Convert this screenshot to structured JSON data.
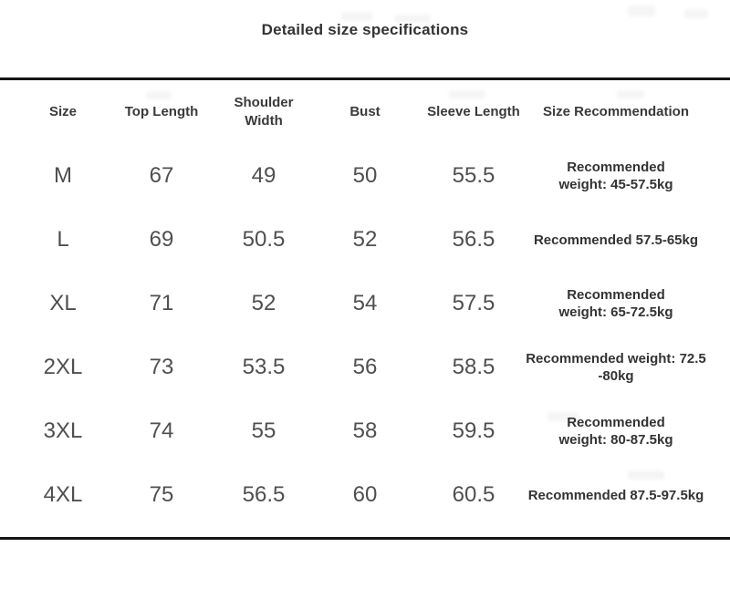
{
  "page": {
    "title": "Detailed size specifications"
  },
  "colors": {
    "background": "#ffffff",
    "rule": "#151515",
    "title_text": "#333333",
    "header_text": "#3a3a3a",
    "value_text": "#4f4f4f",
    "recommendation_text": "#333333"
  },
  "table": {
    "columns": [
      {
        "label": "Size"
      },
      {
        "label": "Top Length"
      },
      {
        "label": "Shoulder Width"
      },
      {
        "label": "Bust"
      },
      {
        "label": "Sleeve Length"
      },
      {
        "label": "Size Recommendation"
      }
    ],
    "rows": [
      {
        "size": "M",
        "top_length": "67",
        "shoulder_width": "49",
        "bust": "50",
        "sleeve_length": "55.5",
        "recommendation": "Recommended\nweight: 45-57.5kg"
      },
      {
        "size": "L",
        "top_length": "69",
        "shoulder_width": "50.5",
        "bust": "52",
        "sleeve_length": "56.5",
        "recommendation": "Recommended 57.5-65kg"
      },
      {
        "size": "XL",
        "top_length": "71",
        "shoulder_width": "52",
        "bust": "54",
        "sleeve_length": "57.5",
        "recommendation": "Recommended\nweight: 65-72.5kg"
      },
      {
        "size": "2XL",
        "top_length": "73",
        "shoulder_width": "53.5",
        "bust": "56",
        "sleeve_length": "58.5",
        "recommendation": "Recommended weight: 72.5\n-80kg"
      },
      {
        "size": "3XL",
        "top_length": "74",
        "shoulder_width": "55",
        "bust": "58",
        "sleeve_length": "59.5",
        "recommendation": "Recommended\nweight: 80-87.5kg"
      },
      {
        "size": "4XL",
        "top_length": "75",
        "shoulder_width": "56.5",
        "bust": "60",
        "sleeve_length": "60.5",
        "recommendation": "Recommended 87.5-97.5kg"
      }
    ]
  }
}
